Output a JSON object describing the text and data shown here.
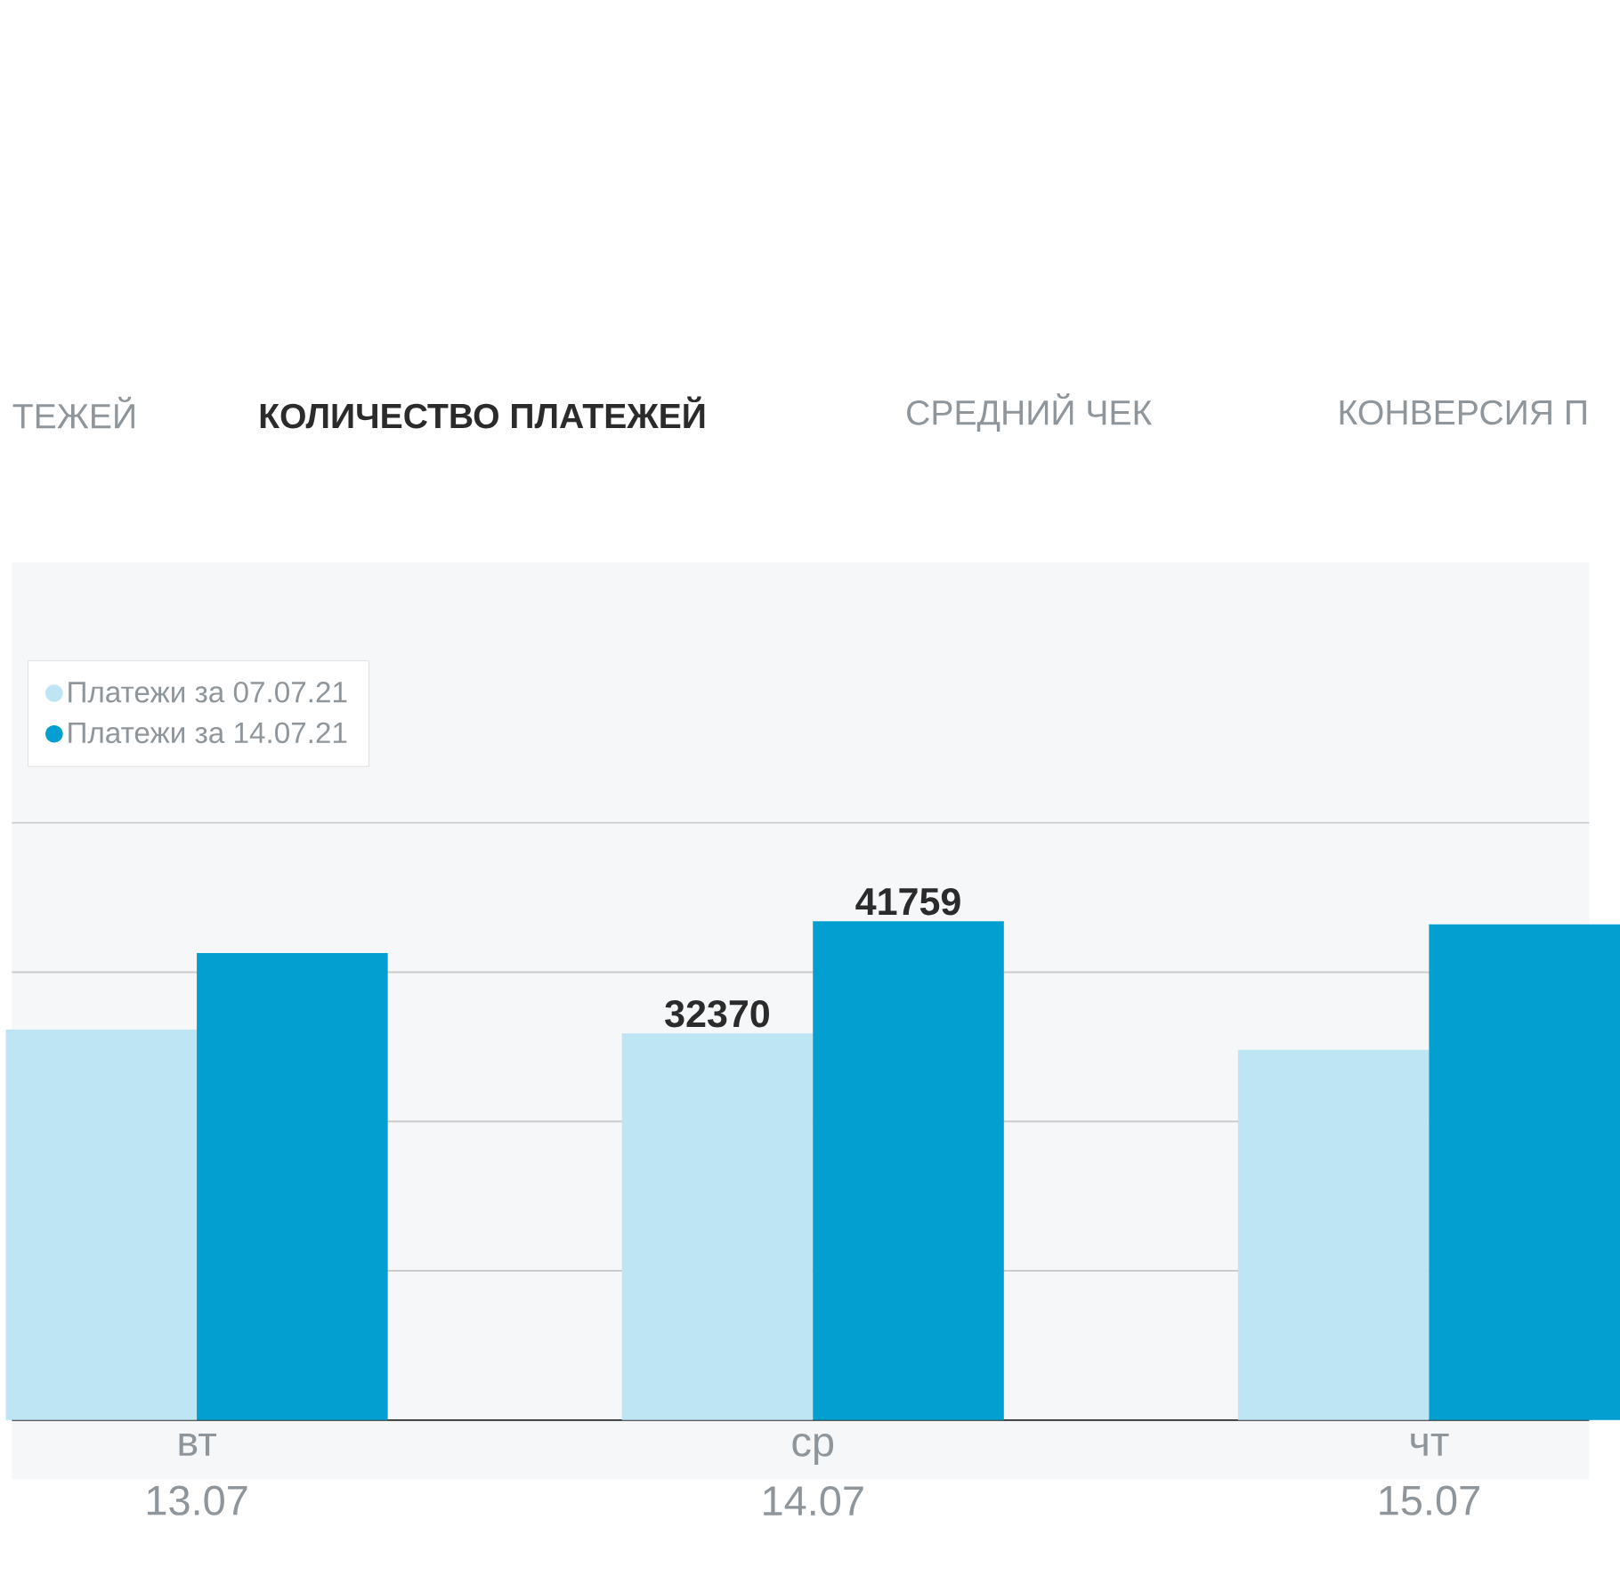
{
  "chart_data": {
    "type": "bar",
    "title": "КОЛИЧЕСТВО ПЛАТЕЖЕЙ",
    "annotations": [
      "ТЕЖЕЙ",
      "СРЕДНИЙ ЧЕК",
      "КОНВЕРСИЯ П"
    ],
    "categories": [
      "вт 13.07",
      "ср 14.07",
      "чт 15.07"
    ],
    "series": [
      {
        "name": "Платежи за 07.07.21",
        "color": "#bde5f3",
        "values": [
          32700,
          32370,
          31000
        ],
        "value_labels": [
          null,
          "32370",
          null
        ]
      },
      {
        "name": "Платежи за 14.07.21",
        "color": "#039fd0",
        "values": [
          39100,
          41759,
          41500
        ],
        "value_labels": [
          null,
          "41759",
          null
        ]
      }
    ],
    "yticks": [
      {
        "value": 12500,
        "label": null
      },
      {
        "value": 25000,
        "label": null
      },
      {
        "value": 37500,
        "label": null
      },
      {
        "value": 50000,
        "label": null
      }
    ],
    "tick_labels": "x",
    "grid": "y",
    "legend": "top left"
  }
}
